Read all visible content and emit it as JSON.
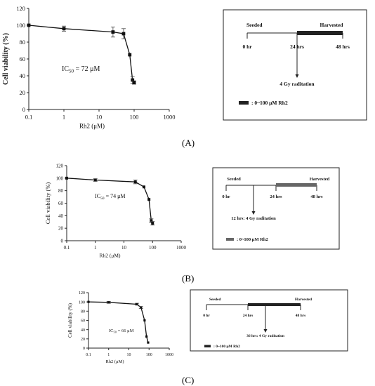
{
  "chart_data": [
    {
      "type": "line",
      "panel": "A",
      "ylabel": "Cell viability (%)",
      "xlabel": "Rh2 (μM)",
      "xscale": "log",
      "xlim": [
        0.1,
        1000
      ],
      "ylim": [
        0,
        120
      ],
      "x_ticks": [
        "0.1",
        "1",
        "10",
        "100",
        "1000"
      ],
      "y_ticks": [
        "0",
        "20",
        "40",
        "60",
        "80",
        "100",
        "120"
      ],
      "annotation": {
        "prefix": "IC",
        "sub": "50",
        "suffix": " = 72 μM"
      },
      "x": [
        0.1,
        1,
        25,
        50,
        75,
        90,
        100
      ],
      "y": [
        100,
        96,
        92,
        90,
        65,
        35,
        32
      ],
      "err": [
        0,
        3,
        6,
        6,
        0,
        4,
        2
      ]
    },
    {
      "type": "line",
      "panel": "B",
      "ylabel": "Cell viability (%)",
      "xlabel": "Rh2 (μM)",
      "xscale": "log",
      "xlim": [
        0.1,
        1000
      ],
      "ylim": [
        0,
        120
      ],
      "x_ticks": [
        "0.1",
        "1",
        "10",
        "100",
        "1000"
      ],
      "y_ticks": [
        "0",
        "20",
        "40",
        "60",
        "80",
        "100",
        "120"
      ],
      "annotation": {
        "prefix": "IC",
        "sub": "50",
        "suffix": " = 74 μM"
      },
      "x": [
        0.1,
        1,
        25,
        50,
        75,
        90,
        100
      ],
      "y": [
        100,
        97,
        94,
        86,
        66,
        32,
        28
      ],
      "err": [
        0,
        2,
        3,
        0,
        0,
        3,
        3
      ]
    },
    {
      "type": "line",
      "panel": "C",
      "ylabel": "Cell viability (%)",
      "xlabel": "Rh2 (μM)",
      "xscale": "log",
      "xlim": [
        0.1,
        1000
      ],
      "ylim": [
        0,
        120
      ],
      "x_ticks": [
        "0.1",
        "1",
        "10",
        "100",
        "1000"
      ],
      "y_ticks": [
        "0",
        "20",
        "40",
        "60",
        "80",
        "100",
        "120"
      ],
      "annotation": {
        "prefix": "IC",
        "sub": "50",
        "suffix": " = 66 μM"
      },
      "x": [
        0.1,
        1,
        25,
        40,
        60,
        75,
        90
      ],
      "y": [
        100,
        99,
        95,
        88,
        60,
        25,
        12
      ],
      "err": [
        0,
        2,
        2,
        2,
        0,
        0,
        0
      ]
    }
  ],
  "schemes": [
    {
      "panel": "A",
      "seeded": "Seeded",
      "harvested": "Harvested",
      "t0": "0 hr",
      "t1": "24 hrs",
      "t2": "48 hrs",
      "radiation": "4 Gy raditation",
      "legend": ": 0~100 μM Rh2"
    },
    {
      "panel": "B",
      "seeded": "Seeded",
      "harvested": "Harvested",
      "t0": "0 hr",
      "t1": "24 hrs",
      "t2": "48 hrs",
      "radiation": "12 hrs: 4 Gy raditation",
      "legend": ": 0~100 μM Rh2"
    },
    {
      "panel": "C",
      "seeded": "Seeded",
      "harvested": "Harvested",
      "t0": "0 hr",
      "t1": "24 hrs",
      "t2": "48 hrs",
      "radiation": "36 hrs: 4 Gy raditation",
      "legend": ": 0~100 μM Rh2"
    }
  ],
  "panel_labels": [
    "(A)",
    "(B)",
    "(C)"
  ]
}
